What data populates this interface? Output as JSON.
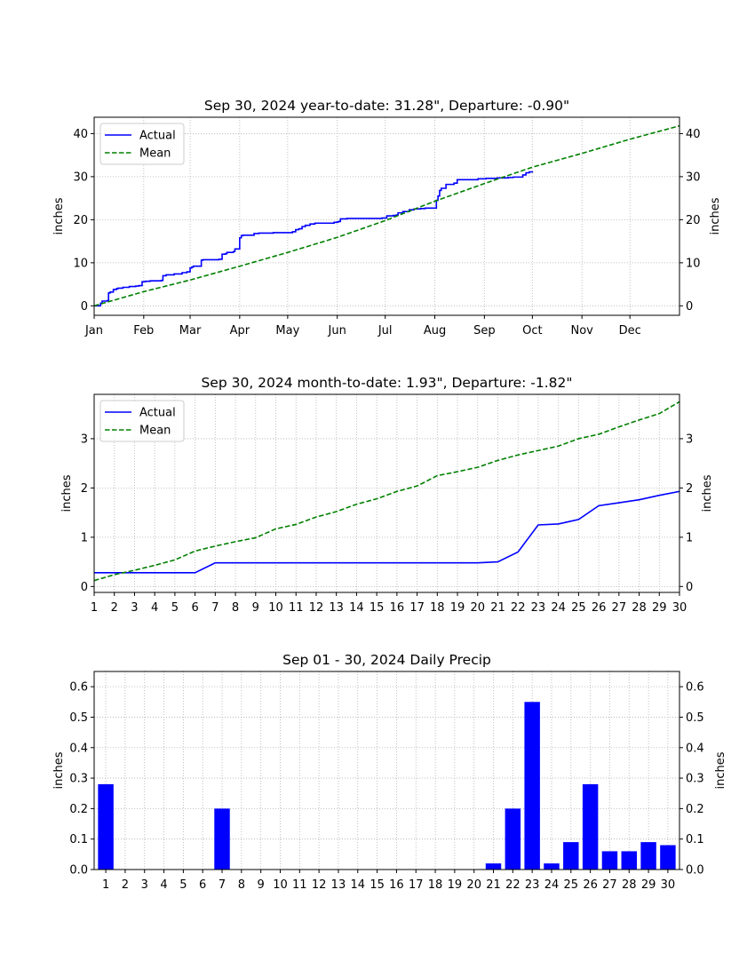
{
  "chart_data": [
    {
      "type": "line",
      "title": "Sep 30, 2024 year-to-date: 31.28\",    Departure: -0.90\"",
      "ylabel": "inches",
      "ylabel_right": "inches",
      "xlim": [
        0,
        366
      ],
      "ylim": [
        -2.2,
        43.8
      ],
      "x_tick_labels": [
        "Jan",
        "Feb",
        "Mar",
        "Apr",
        "May",
        "Jun",
        "Jul",
        "Aug",
        "Sep",
        "Oct",
        "Nov",
        "Dec"
      ],
      "x_tick_days": [
        0,
        31,
        60,
        91,
        121,
        152,
        182,
        213,
        244,
        274,
        305,
        335
      ],
      "y_ticks": [
        0,
        10,
        20,
        30,
        40
      ],
      "grid": true,
      "legend": "top-left",
      "series": [
        {
          "name": "Actual",
          "color": "#0000ff",
          "style": "solid",
          "step": true,
          "x": [
            0,
            4,
            5,
            8,
            9,
            10,
            12,
            14,
            15,
            18,
            22,
            26,
            28,
            30,
            32,
            35,
            42,
            43,
            45,
            50,
            55,
            58,
            60,
            61,
            62,
            67,
            68,
            78,
            80,
            82,
            83,
            87,
            88,
            91,
            92,
            93,
            94,
            100,
            103,
            112,
            124,
            126,
            128,
            130,
            132,
            135,
            138,
            150,
            152,
            153,
            154,
            158,
            170,
            180,
            183,
            187,
            189,
            190,
            193,
            197,
            200,
            204,
            207,
            214,
            215,
            216,
            217,
            220,
            225,
            227,
            230,
            240,
            245,
            252,
            259,
            262,
            268,
            270,
            272,
            274
          ],
          "y": [
            0,
            0.6,
            1.1,
            1.2,
            3.0,
            3.2,
            3.8,
            4.0,
            4.1,
            4.3,
            4.5,
            4.6,
            4.7,
            5.6,
            5.7,
            5.8,
            5.9,
            7.0,
            7.2,
            7.4,
            7.7,
            7.9,
            8.8,
            9.0,
            9.2,
            10.6,
            10.7,
            10.8,
            12.0,
            12.1,
            12.4,
            12.6,
            13.2,
            15.8,
            16.3,
            16.4,
            16.4,
            16.8,
            16.9,
            17.0,
            17.2,
            17.7,
            17.9,
            18.4,
            18.7,
            19.0,
            19.2,
            19.4,
            19.5,
            19.6,
            20.2,
            20.3,
            20.3,
            20.4,
            20.9,
            21.0,
            21.1,
            21.6,
            21.9,
            22.3,
            22.5,
            22.6,
            22.7,
            24.5,
            25.5,
            26.8,
            27.3,
            28.2,
            28.5,
            29.3,
            29.3,
            29.5,
            29.6,
            29.7,
            29.8,
            29.9,
            30.4,
            30.9,
            31.1,
            31.28
          ]
        },
        {
          "name": "Mean",
          "color": "#008000",
          "style": "dashed",
          "x": [
            0,
            31,
            60,
            91,
            121,
            152,
            182,
            213,
            244,
            274,
            305,
            335,
            366
          ],
          "y": [
            0,
            3.3,
            6.0,
            9.2,
            12.4,
            15.9,
            19.8,
            24.3,
            28.4,
            32.2,
            35.4,
            38.7,
            41.8
          ]
        }
      ]
    },
    {
      "type": "line",
      "title": "Sep 30, 2024 month-to-date: 1.93\",    Departure: -1.82\"",
      "ylabel": "inches",
      "ylabel_right": "inches",
      "xlim": [
        1,
        30
      ],
      "ylim": [
        -0.12,
        3.9
      ],
      "x_ticks": [
        1,
        2,
        3,
        4,
        5,
        6,
        7,
        8,
        9,
        10,
        11,
        12,
        13,
        14,
        15,
        16,
        17,
        18,
        19,
        20,
        21,
        22,
        23,
        24,
        25,
        26,
        27,
        28,
        29,
        30
      ],
      "y_ticks": [
        0,
        1,
        2,
        3
      ],
      "grid": true,
      "legend": "top-left",
      "series": [
        {
          "name": "Actual",
          "color": "#0000ff",
          "style": "solid",
          "x": [
            1,
            2,
            3,
            4,
            5,
            6,
            7,
            8,
            9,
            10,
            11,
            12,
            13,
            14,
            15,
            16,
            17,
            18,
            19,
            20,
            21,
            22,
            23,
            24,
            25,
            26,
            27,
            28,
            29,
            30
          ],
          "y": [
            0.28,
            0.28,
            0.28,
            0.28,
            0.28,
            0.28,
            0.48,
            0.48,
            0.48,
            0.48,
            0.48,
            0.48,
            0.48,
            0.48,
            0.48,
            0.48,
            0.48,
            0.48,
            0.48,
            0.48,
            0.5,
            0.7,
            1.25,
            1.27,
            1.36,
            1.64,
            1.7,
            1.76,
            1.85,
            1.93
          ]
        },
        {
          "name": "Mean",
          "color": "#008000",
          "style": "dashed",
          "x": [
            1,
            2,
            3,
            4,
            5,
            6,
            7,
            8,
            9,
            10,
            11,
            12,
            13,
            14,
            15,
            16,
            17,
            18,
            19,
            20,
            21,
            22,
            23,
            24,
            25,
            26,
            27,
            28,
            29,
            30
          ],
          "y": [
            0.12,
            0.24,
            0.33,
            0.43,
            0.54,
            0.72,
            0.82,
            0.91,
            0.99,
            1.17,
            1.26,
            1.41,
            1.52,
            1.67,
            1.78,
            1.93,
            2.04,
            2.25,
            2.33,
            2.42,
            2.56,
            2.67,
            2.76,
            2.85,
            3.0,
            3.09,
            3.24,
            3.38,
            3.51,
            3.75
          ]
        }
      ]
    },
    {
      "type": "bar",
      "title": "Sep 01 - 30, 2024 Daily Precip",
      "ylabel": "inches",
      "ylabel_right": "inches",
      "ylim": [
        0,
        0.65
      ],
      "y_ticks": [
        0.0,
        0.1,
        0.2,
        0.3,
        0.4,
        0.5,
        0.6
      ],
      "grid": true,
      "color": "#0000ff",
      "categories": [
        1,
        2,
        3,
        4,
        5,
        6,
        7,
        8,
        9,
        10,
        11,
        12,
        13,
        14,
        15,
        16,
        17,
        18,
        19,
        20,
        21,
        22,
        23,
        24,
        25,
        26,
        27,
        28,
        29,
        30
      ],
      "values": [
        0.28,
        0,
        0,
        0,
        0,
        0,
        0.2,
        0,
        0,
        0,
        0,
        0,
        0,
        0,
        0,
        0,
        0,
        0,
        0,
        0,
        0.02,
        0.2,
        0.55,
        0.02,
        0.09,
        0.28,
        0.06,
        0.06,
        0.09,
        0.08
      ]
    }
  ]
}
